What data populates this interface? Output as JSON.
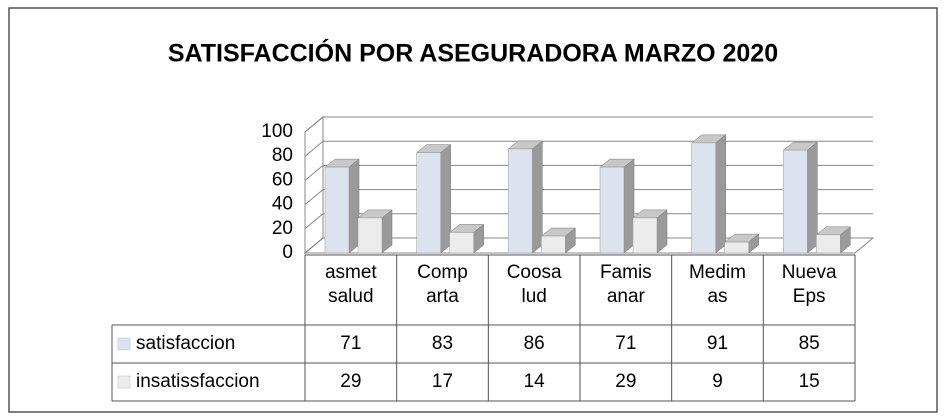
{
  "chart_data": {
    "type": "bar3d",
    "title": "SATISFACCIÓN POR ASEGURADORA MARZO 2020",
    "categories": [
      "asmet salud",
      "Comparta",
      "Coosalud",
      "Famisanar",
      "Medimas",
      "Nueva Eps"
    ],
    "series": [
      {
        "name": "satisfaccion",
        "color": "#dce3ee",
        "values": [
          71,
          83,
          86,
          71,
          91,
          85
        ]
      },
      {
        "name": "insatissfaccion",
        "color": "#ececec",
        "values": [
          29,
          17,
          14,
          29,
          9,
          15
        ]
      }
    ],
    "ylim": [
      0,
      100
    ],
    "yticks": [
      0,
      20,
      40,
      60,
      80,
      100
    ],
    "grid": true,
    "data_table": true
  }
}
